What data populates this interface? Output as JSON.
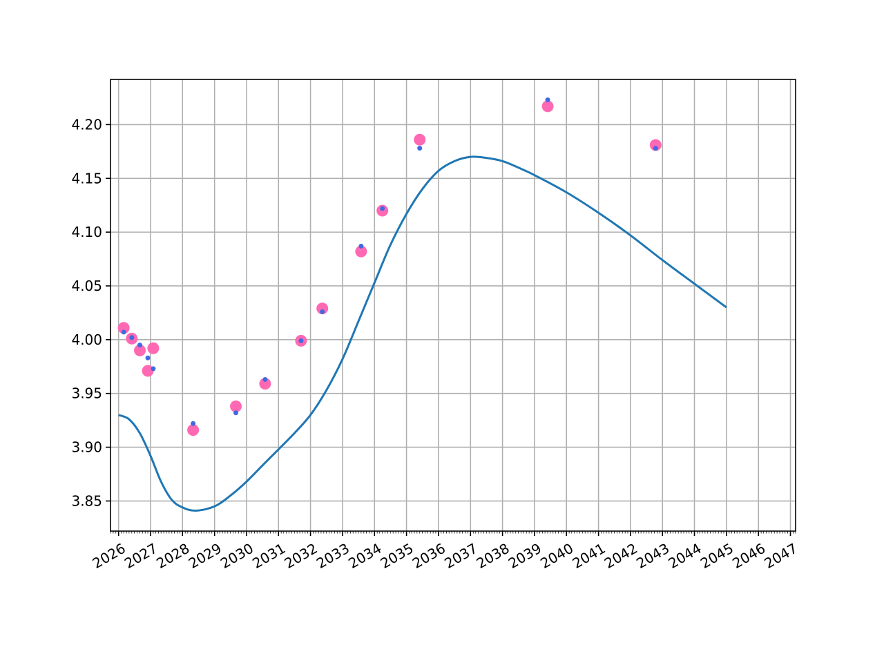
{
  "chart_data": {
    "type": "scatter",
    "title": "",
    "xlabel": "",
    "ylabel": "",
    "x_axis_kind": "date",
    "xlim": [
      "2025-10-01",
      "2047-03-01"
    ],
    "ylim": [
      3.822,
      4.242
    ],
    "grid": true,
    "legend": "none",
    "x_ticks": [
      "2026",
      "2027",
      "2028",
      "2029",
      "2030",
      "2031",
      "2032",
      "2033",
      "2034",
      "2035",
      "2036",
      "2037",
      "2038",
      "2039",
      "2040",
      "2041",
      "2042",
      "2043",
      "2044",
      "2045",
      "2046",
      "2047"
    ],
    "y_ticks": [
      3.85,
      3.9,
      3.95,
      4.0,
      4.05,
      4.1,
      4.15,
      4.2
    ],
    "series": [
      {
        "kind": "scatter",
        "color": "#ff69b4",
        "marker": "large-dot",
        "points": [
          {
            "x": "2026-03-01",
            "y": 4.011
          },
          {
            "x": "2026-06-01",
            "y": 4.001
          },
          {
            "x": "2026-09-01",
            "y": 3.99
          },
          {
            "x": "2026-12-01",
            "y": 3.971
          },
          {
            "x": "2027-02-01",
            "y": 3.992
          },
          {
            "x": "2028-05-01",
            "y": 3.916
          },
          {
            "x": "2029-09-01",
            "y": 3.938
          },
          {
            "x": "2030-08-01",
            "y": 3.959
          },
          {
            "x": "2031-09-15",
            "y": 3.999
          },
          {
            "x": "2032-05-15",
            "y": 4.029
          },
          {
            "x": "2033-08-01",
            "y": 4.082
          },
          {
            "x": "2034-04-01",
            "y": 4.12
          },
          {
            "x": "2035-06-01",
            "y": 4.186
          },
          {
            "x": "2039-06-01",
            "y": 4.217
          },
          {
            "x": "2042-10-15",
            "y": 4.181
          }
        ]
      },
      {
        "kind": "scatter",
        "color": "#4169e1",
        "marker": "small-dot",
        "points": [
          {
            "x": "2026-03-01",
            "y": 4.007
          },
          {
            "x": "2026-06-01",
            "y": 4.002
          },
          {
            "x": "2026-09-01",
            "y": 3.995
          },
          {
            "x": "2026-12-01",
            "y": 3.983
          },
          {
            "x": "2027-02-01",
            "y": 3.973
          },
          {
            "x": "2028-05-01",
            "y": 3.922
          },
          {
            "x": "2029-09-01",
            "y": 3.932
          },
          {
            "x": "2030-08-01",
            "y": 3.963
          },
          {
            "x": "2031-09-15",
            "y": 3.999
          },
          {
            "x": "2032-05-15",
            "y": 4.026
          },
          {
            "x": "2033-08-01",
            "y": 4.087
          },
          {
            "x": "2034-04-01",
            "y": 4.122
          },
          {
            "x": "2035-06-01",
            "y": 4.178
          },
          {
            "x": "2039-06-01",
            "y": 4.223
          },
          {
            "x": "2042-10-15",
            "y": 4.178
          }
        ]
      },
      {
        "kind": "line",
        "color": "#1f77b4",
        "points": [
          {
            "x": "2026-01-01",
            "y": 3.93
          },
          {
            "x": "2026-05-01",
            "y": 3.926
          },
          {
            "x": "2026-09-01",
            "y": 3.913
          },
          {
            "x": "2027-01-01",
            "y": 3.892
          },
          {
            "x": "2027-05-01",
            "y": 3.868
          },
          {
            "x": "2027-09-01",
            "y": 3.851
          },
          {
            "x": "2028-01-01",
            "y": 3.844
          },
          {
            "x": "2028-06-01",
            "y": 3.841
          },
          {
            "x": "2029-01-01",
            "y": 3.845
          },
          {
            "x": "2029-07-01",
            "y": 3.855
          },
          {
            "x": "2030-01-01",
            "y": 3.868
          },
          {
            "x": "2030-07-01",
            "y": 3.883
          },
          {
            "x": "2031-01-01",
            "y": 3.898
          },
          {
            "x": "2031-07-01",
            "y": 3.913
          },
          {
            "x": "2032-01-01",
            "y": 3.93
          },
          {
            "x": "2032-07-01",
            "y": 3.953
          },
          {
            "x": "2033-01-01",
            "y": 3.982
          },
          {
            "x": "2033-07-01",
            "y": 4.017
          },
          {
            "x": "2034-01-01",
            "y": 4.053
          },
          {
            "x": "2034-07-01",
            "y": 4.088
          },
          {
            "x": "2035-01-01",
            "y": 4.117
          },
          {
            "x": "2035-07-01",
            "y": 4.14
          },
          {
            "x": "2036-01-01",
            "y": 4.157
          },
          {
            "x": "2036-07-01",
            "y": 4.166
          },
          {
            "x": "2037-01-01",
            "y": 4.17
          },
          {
            "x": "2037-07-01",
            "y": 4.169
          },
          {
            "x": "2038-01-01",
            "y": 4.166
          },
          {
            "x": "2038-07-01",
            "y": 4.16
          },
          {
            "x": "2039-01-01",
            "y": 4.153
          },
          {
            "x": "2040-01-01",
            "y": 4.137
          },
          {
            "x": "2041-01-01",
            "y": 4.118
          },
          {
            "x": "2042-01-01",
            "y": 4.097
          },
          {
            "x": "2043-01-01",
            "y": 4.074
          },
          {
            "x": "2044-01-01",
            "y": 4.052
          },
          {
            "x": "2045-01-01",
            "y": 4.03
          }
        ]
      }
    ]
  }
}
